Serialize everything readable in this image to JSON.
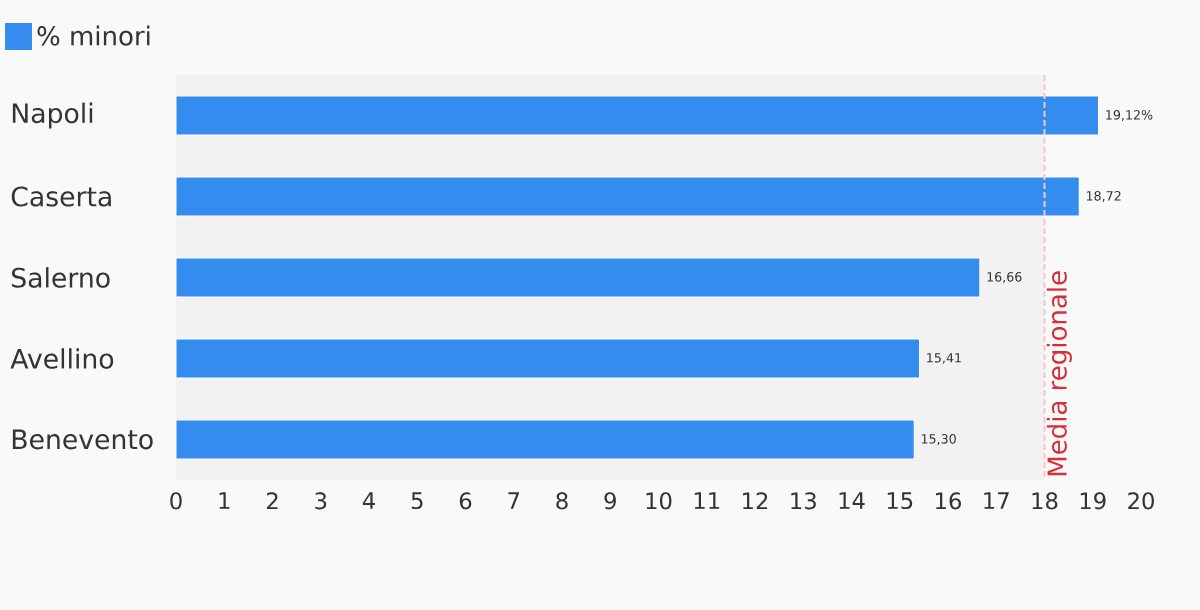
{
  "chart_data": {
    "type": "bar",
    "orientation": "horizontal",
    "categories": [
      "Napoli",
      "Caserta",
      "Salerno",
      "Avellino",
      "Benevento"
    ],
    "series": [
      {
        "name": "% minori",
        "color": "#338cee",
        "values": [
          19.12,
          18.72,
          16.66,
          15.41,
          15.3
        ],
        "value_labels": [
          "19,12%",
          "18,72",
          "16,66",
          "15,41",
          "15,30"
        ]
      }
    ],
    "xlim": [
      0,
      20
    ],
    "xticks": [
      0,
      1,
      2,
      3,
      4,
      5,
      6,
      7,
      8,
      9,
      10,
      11,
      12,
      13,
      14,
      15,
      16,
      17,
      18,
      19,
      20
    ],
    "ref_lines": [
      {
        "axis": "x",
        "value": 18,
        "label": "Media regionale",
        "color": "#f7c6ca",
        "line_style": "dashed"
      }
    ],
    "bands": [
      {
        "axis": "x",
        "from": 0,
        "to": 18,
        "color": "#f2f2f2"
      }
    ],
    "legend": "top left"
  }
}
